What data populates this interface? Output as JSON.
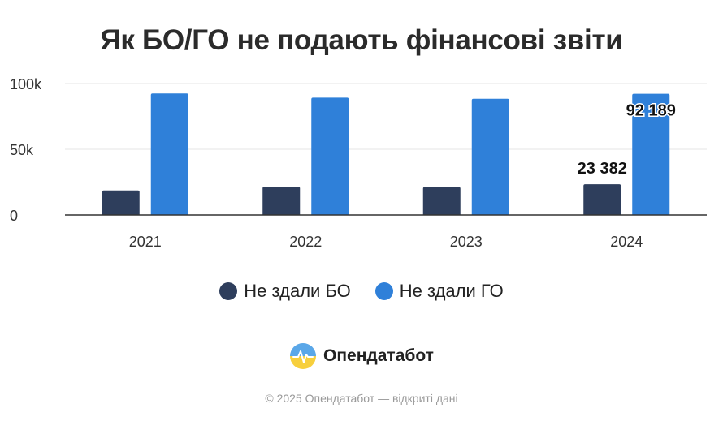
{
  "title": "Як БО/ГО не подають фінансові звіти",
  "chart_data": {
    "type": "bar",
    "categories": [
      "2021",
      "2022",
      "2023",
      "2024"
    ],
    "series": [
      {
        "name": "Не здали БО",
        "color": "#2e3e5c",
        "values": [
          18700,
          21500,
          21300,
          23382
        ]
      },
      {
        "name": "Не здали ГО",
        "color": "#2f80d9",
        "values": [
          92400,
          89300,
          88400,
          92189
        ]
      }
    ],
    "ylim": [
      0,
      100000
    ],
    "yticks": [
      0,
      50000,
      100000
    ],
    "ytick_labels": [
      "0",
      "50k",
      "100k"
    ],
    "data_labels": [
      {
        "series": 0,
        "index": 3,
        "text": "23 382"
      },
      {
        "series": 1,
        "index": 3,
        "text": "92 189"
      }
    ],
    "grid": true,
    "legend": "bottom"
  },
  "brand": {
    "name": "Опендатабот",
    "logo_icon": "opendatabot-logo-icon"
  },
  "footer": "© 2025 Опендатабот — відкриті дані"
}
